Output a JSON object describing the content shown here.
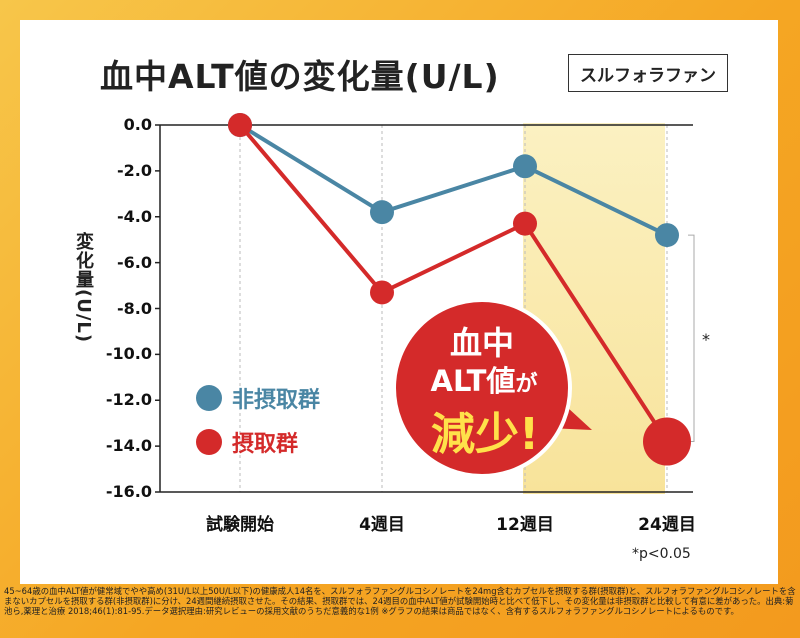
{
  "title": "血中ALT値の変化量(U/L)",
  "tag": "スルフォラファン",
  "ylabel": "変化量(U/L)",
  "chart_data": {
    "type": "line",
    "categories": [
      "試験開始",
      "4週目",
      "12週目",
      "24週目"
    ],
    "series": [
      {
        "name": "非摂取群",
        "color": "#4a86a4",
        "values": [
          0.0,
          -3.8,
          -1.8,
          -4.8
        ]
      },
      {
        "name": "摂取群",
        "color": "#d42a2a",
        "values": [
          0.0,
          -7.3,
          -4.3,
          -13.8
        ]
      }
    ],
    "yticks": [
      "0.0",
      "-2.0",
      "-4.0",
      "-6.0",
      "-8.0",
      "-10.0",
      "-12.0",
      "-14.0",
      "-16.0"
    ],
    "ylim": [
      -16,
      0
    ],
    "highlight_from": "12週目",
    "significance_mark": "*",
    "p_note": "*p<0.05"
  },
  "bubble": {
    "line1": "血中",
    "line2a": "ALT値",
    "line2b": "が",
    "line3": "減少!"
  },
  "footnote": "45~64歳の血中ALT値が健常域でやや高め(31U/L以上50U/L以下)の健康成人14名を、スルフォラファングルコシノレートを24mg含むカプセルを摂取する群(摂取群)と、スルフォラファングルコシノレートを含まないカプセルを摂取する群(非摂取群)に分け、24週間継続摂取させた。その結果、摂取群では、24週目の血中ALT値が試験開始時と比べて低下し、その変化量は非摂取群と比較して有意に差があった。出典:菊池ら,薬理と治療 2018;46(1):81-95.データ選択理由:研究レビューの採用文献のうちだ意義的な1例 ※グラフの結果は商品ではなく、含有するスルフォラファングルコシノレートによるものです。"
}
